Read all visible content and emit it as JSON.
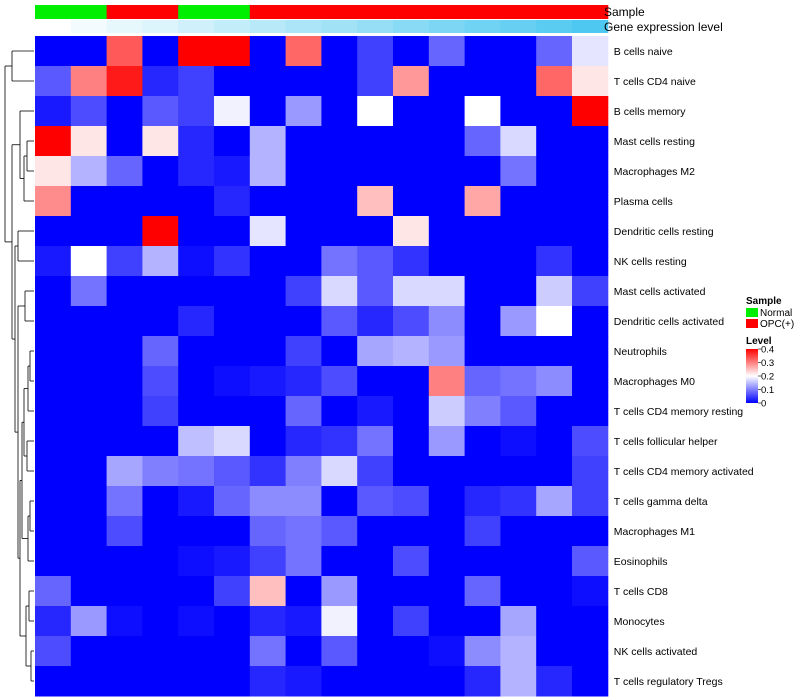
{
  "chart_data": {
    "type": "heatmap",
    "columns": 16,
    "annotation_tracks": [
      {
        "label": "Sample"
      },
      {
        "label": "Gene expression level"
      }
    ],
    "sample_groups": [
      "Normal",
      "Normal",
      "OPC(+)",
      "OPC(+)",
      "Normal",
      "Normal",
      "OPC(+)",
      "OPC(+)",
      "OPC(+)",
      "OPC(+)",
      "OPC(+)",
      "OPC(+)",
      "OPC(+)",
      "OPC(+)",
      "OPC(+)",
      "OPC(+)"
    ],
    "sample_colors": {
      "Normal": "#00ee00",
      "OPC(+)": "#ff0000"
    },
    "expression_gradient": [
      "#ffffff",
      "#4ec8f0"
    ],
    "rows": [
      "B cells naive",
      "T cells CD4 naive",
      "B cells memory",
      "Mast cells resting",
      "Macrophages M2",
      "Plasma cells",
      "Dendritic cells resting",
      "NK cells resting",
      "Mast cells activated",
      "Dendritic cells activated",
      "Neutrophils",
      "Macrophages M0",
      "T cells CD4 memory resting",
      "T cells follicular helper",
      "T cells CD4 memory activated",
      "T cells gamma delta",
      "Macrophages M1",
      "Eosinophils",
      "T cells CD8",
      "Monocytes",
      "NK cells activated",
      "T cells regulatory  Tregs"
    ],
    "values": [
      [
        0,
        0,
        0.33,
        0,
        0.4,
        0.4,
        0,
        0.32,
        0,
        0.05,
        0,
        0.08,
        0,
        0,
        0.08,
        0.18
      ],
      [
        0.07,
        0.3,
        0.38,
        0.03,
        0.05,
        0,
        0,
        0,
        0,
        0.05,
        0.28,
        0,
        0,
        0,
        0.32,
        0.22
      ],
      [
        0.02,
        0.06,
        0,
        0.07,
        0.05,
        0.19,
        0,
        0.12,
        0,
        0.2,
        0,
        0,
        0.2,
        0,
        0,
        0.4
      ],
      [
        0.4,
        0.22,
        0,
        0.22,
        0.03,
        0,
        0.14,
        0,
        0,
        0,
        0,
        0,
        0.08,
        0.17,
        0,
        0
      ],
      [
        0.22,
        0.14,
        0.08,
        0,
        0.03,
        0.02,
        0.14,
        0,
        0,
        0,
        0,
        0,
        0,
        0.09,
        0,
        0
      ],
      [
        0.29,
        0,
        0,
        0,
        0,
        0.03,
        0,
        0,
        0,
        0.25,
        0,
        0,
        0.27,
        0,
        0,
        0
      ],
      [
        0,
        0,
        0,
        0.4,
        0,
        0,
        0.18,
        0,
        0,
        0,
        0.22,
        0,
        0,
        0,
        0,
        0
      ],
      [
        0.02,
        0.2,
        0.05,
        0.14,
        0.01,
        0.04,
        0,
        0,
        0.09,
        0.07,
        0.04,
        0,
        0,
        0,
        0.04,
        0
      ],
      [
        0,
        0.09,
        0,
        0,
        0,
        0,
        0,
        0.05,
        0.17,
        0.07,
        0.17,
        0.17,
        0,
        0,
        0.16,
        0.05
      ],
      [
        0,
        0,
        0,
        0,
        0.03,
        0,
        0,
        0,
        0.07,
        0.03,
        0.06,
        0.11,
        0,
        0.12,
        0.2,
        0
      ],
      [
        0,
        0,
        0,
        0.08,
        0,
        0,
        0,
        0.05,
        0,
        0.13,
        0.14,
        0.12,
        0,
        0,
        0,
        0
      ],
      [
        0,
        0,
        0,
        0.06,
        0,
        0.01,
        0.02,
        0.03,
        0.06,
        0,
        0,
        0.3,
        0.08,
        0.09,
        0.11,
        0
      ],
      [
        0,
        0,
        0,
        0.05,
        0,
        0,
        0,
        0.08,
        0,
        0.02,
        0,
        0.16,
        0.1,
        0.07,
        0,
        0
      ],
      [
        0,
        0,
        0,
        0,
        0.15,
        0.17,
        0,
        0.03,
        0.04,
        0.09,
        0,
        0.12,
        0,
        0.01,
        0,
        0.06
      ],
      [
        0,
        0,
        0.13,
        0.1,
        0.09,
        0.07,
        0.04,
        0.1,
        0.17,
        0.05,
        0,
        0,
        0,
        0,
        0,
        0.05
      ],
      [
        0,
        0,
        0.09,
        0,
        0.02,
        0.08,
        0.11,
        0.11,
        0,
        0.07,
        0.06,
        0,
        0.03,
        0.04,
        0.13,
        0.05
      ],
      [
        0,
        0,
        0.06,
        0,
        0,
        0,
        0.08,
        0.09,
        0.07,
        0,
        0,
        0,
        0.05,
        0,
        0,
        0
      ],
      [
        0,
        0,
        0,
        0,
        0.01,
        0.02,
        0.05,
        0.09,
        0,
        0,
        0.06,
        0,
        0,
        0,
        0,
        0.07
      ],
      [
        0.08,
        0,
        0,
        0,
        0,
        0.05,
        0.25,
        0,
        0.12,
        0,
        0,
        0,
        0.08,
        0,
        0,
        0.01
      ],
      [
        0.03,
        0.12,
        0.01,
        0,
        0.01,
        0,
        0.03,
        0.02,
        0.19,
        0,
        0.05,
        0,
        0,
        0.13,
        0,
        0
      ],
      [
        0.06,
        0,
        0,
        0,
        0,
        0,
        0.09,
        0,
        0.07,
        0,
        0,
        0.01,
        0.11,
        0.14,
        0,
        0
      ],
      [
        0,
        0,
        0,
        0,
        0,
        0,
        0.03,
        0.02,
        0,
        0,
        0,
        0,
        0.03,
        0.14,
        0.03,
        0
      ]
    ],
    "color_scale": {
      "min": 0,
      "mid": 0.2,
      "max": 0.4,
      "low": "#0000ff",
      "midColor": "#ffffff",
      "high": "#ff0000"
    },
    "legend": {
      "sample_title": "Sample",
      "sample_items": [
        {
          "label": "Normal",
          "color": "#00ee00"
        },
        {
          "label": "OPC(+)",
          "color": "#ff0000"
        }
      ],
      "level_title": "Level",
      "level_ticks": [
        "0.4",
        "0.3",
        "0.2",
        "0.1",
        "0"
      ],
      "level_tick_values": [
        0.4,
        0.3,
        0.2,
        0.1,
        0
      ]
    },
    "dendrogram": "hierarchical clustering tree on rows (left)"
  }
}
